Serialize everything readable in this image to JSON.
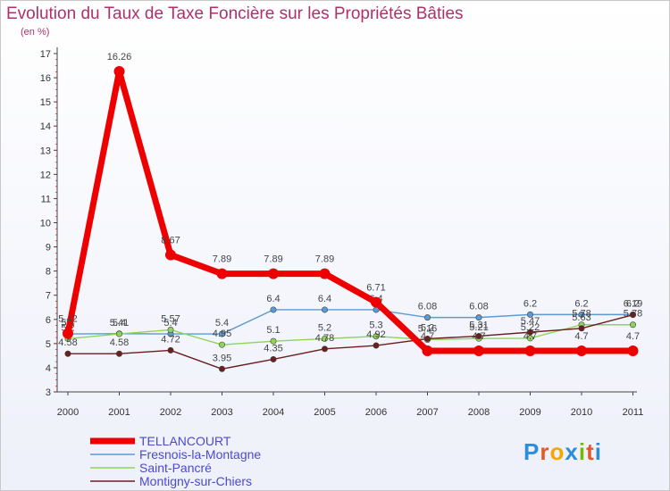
{
  "header": {
    "title": "Evolution du Taux de Taxe Foncière sur les Propriétés Bâties",
    "unit": "(en %)"
  },
  "logo": {
    "text": "Proxiti",
    "colors": [
      "#2a8fd8",
      "#e0592a",
      "#f2a800",
      "#2a8fd8",
      "#7ab800",
      "#e0592a",
      "#2a8fd8"
    ]
  },
  "chart_data": {
    "type": "line",
    "x": [
      "2000",
      "2001",
      "2002",
      "2003",
      "2004",
      "2005",
      "2006",
      "2007",
      "2008",
      "2009",
      "2010",
      "2011"
    ],
    "ylim": [
      3,
      17
    ],
    "yticks": [
      "3",
      "4",
      "5",
      "6",
      "7",
      "8",
      "9",
      "10",
      "11",
      "12",
      "13",
      "14",
      "15",
      "16",
      "17"
    ],
    "grid": false,
    "legend_position": "bottom-left",
    "series": [
      {
        "name": "Fresnois-la-Montagne",
        "color": "#5b9bd5",
        "values": [
          5.4,
          5.41,
          5.4,
          5.4,
          6.4,
          6.4,
          6.4,
          6.08,
          6.08,
          6.2,
          6.2,
          6.2
        ],
        "labels": [
          "5.4",
          "5.41",
          "5.4",
          "5.4",
          "6.4",
          "6.4",
          "6.4",
          "6.08",
          "6.08",
          "6.2",
          "6.2",
          "6.2"
        ]
      },
      {
        "name": "Saint-Pancré",
        "color": "#8fd45a",
        "values": [
          5.2,
          5.4,
          5.57,
          4.95,
          5.1,
          5.2,
          5.3,
          5.16,
          5.21,
          5.22,
          5.78,
          5.78
        ],
        "labels": [
          "5.2",
          "5.4",
          "5.57",
          "4.95",
          "5.1",
          "5.2",
          "5.3",
          "5.16",
          "5.21",
          "5.22",
          "5.78",
          "5.78"
        ]
      },
      {
        "name": "Montigny-sur-Chiers",
        "color": "#6b1e1e",
        "values": [
          4.58,
          4.58,
          4.72,
          3.95,
          4.35,
          4.78,
          4.92,
          5.2,
          5.31,
          5.47,
          5.63,
          6.19
        ],
        "labels": [
          "4.58",
          "4.58",
          "4.72",
          "3.95",
          "4.35",
          "4.78",
          "4.92",
          "5.2",
          "5.31",
          "5.47",
          "5.63",
          "6.19"
        ]
      },
      {
        "name": "TELLANCOURT",
        "color": "#ee0000",
        "values": [
          5.42,
          16.26,
          8.67,
          7.89,
          7.89,
          7.89,
          6.71,
          4.7,
          4.7,
          4.7,
          4.7,
          4.7
        ],
        "labels": [
          "5.42",
          "16.26",
          "8.67",
          "7.89",
          "7.89",
          "7.89",
          "6.71",
          "4.7",
          "4.7",
          "4.7",
          "4.7",
          "4.7"
        ]
      }
    ],
    "legend_order": [
      "TELLANCOURT",
      "Fresnois-la-Montagne",
      "Saint-Pancré",
      "Montigny-sur-Chiers"
    ]
  }
}
